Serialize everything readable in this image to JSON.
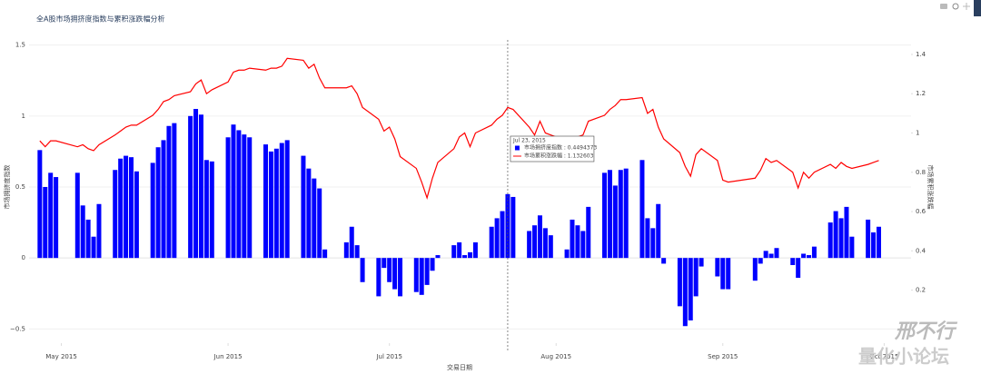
{
  "chart_data": {
    "type": "bar",
    "title": "全A股市场拥挤度指数与累积涨跌幅分析",
    "xlabel": "交易日期",
    "ylabel": "市场拥挤度指数",
    "y2label": "市场累积涨跌幅",
    "x": [
      "2015-04-27",
      "2015-04-28",
      "2015-04-29",
      "2015-04-30",
      "2015-05-04",
      "2015-05-05",
      "2015-05-06",
      "2015-05-07",
      "2015-05-08",
      "2015-05-11",
      "2015-05-12",
      "2015-05-13",
      "2015-05-14",
      "2015-05-15",
      "2015-05-18",
      "2015-05-19",
      "2015-05-20",
      "2015-05-21",
      "2015-05-22",
      "2015-05-25",
      "2015-05-26",
      "2015-05-27",
      "2015-05-28",
      "2015-05-29",
      "2015-06-01",
      "2015-06-02",
      "2015-06-03",
      "2015-06-04",
      "2015-06-05",
      "2015-06-08",
      "2015-06-09",
      "2015-06-10",
      "2015-06-11",
      "2015-06-12",
      "2015-06-15",
      "2015-06-16",
      "2015-06-17",
      "2015-06-18",
      "2015-06-19",
      "2015-06-23",
      "2015-06-24",
      "2015-06-25",
      "2015-06-26",
      "2015-06-29",
      "2015-06-30",
      "2015-07-01",
      "2015-07-02",
      "2015-07-03",
      "2015-07-06",
      "2015-07-07",
      "2015-07-08",
      "2015-07-09",
      "2015-07-10",
      "2015-07-13",
      "2015-07-14",
      "2015-07-15",
      "2015-07-16",
      "2015-07-17",
      "2015-07-20",
      "2015-07-21",
      "2015-07-22",
      "2015-07-23",
      "2015-07-24",
      "2015-07-27",
      "2015-07-28",
      "2015-07-29",
      "2015-07-30",
      "2015-07-31",
      "2015-08-03",
      "2015-08-04",
      "2015-08-05",
      "2015-08-06",
      "2015-08-07",
      "2015-08-10",
      "2015-08-11",
      "2015-08-12",
      "2015-08-13",
      "2015-08-14",
      "2015-08-17",
      "2015-08-18",
      "2015-08-19",
      "2015-08-20",
      "2015-08-21",
      "2015-08-24",
      "2015-08-25",
      "2015-08-26",
      "2015-08-27",
      "2015-08-28",
      "2015-08-31",
      "2015-09-01",
      "2015-09-02",
      "2015-09-07",
      "2015-09-08",
      "2015-09-09",
      "2015-09-10",
      "2015-09-11",
      "2015-09-14",
      "2015-09-15",
      "2015-09-16",
      "2015-09-17",
      "2015-09-18",
      "2015-09-21",
      "2015-09-22",
      "2015-09-23",
      "2015-09-24",
      "2015-09-25",
      "2015-09-28",
      "2015-09-29",
      "2015-09-30"
    ],
    "series": [
      {
        "name": "市场拥挤度指数",
        "type": "bar",
        "color": "#0000ff",
        "values": [
          0.76,
          0.5,
          0.6,
          0.57,
          0.6,
          0.37,
          0.27,
          0.15,
          0.38,
          0.62,
          0.7,
          0.72,
          0.71,
          0.61,
          0.67,
          0.78,
          0.83,
          0.93,
          0.95,
          1.0,
          1.05,
          1.01,
          0.69,
          0.68,
          0.85,
          0.94,
          0.9,
          0.87,
          0.85,
          0.8,
          0.75,
          0.77,
          0.81,
          0.83,
          0.72,
          0.63,
          0.56,
          0.49,
          0.06,
          0.11,
          0.22,
          0.09,
          -0.17,
          -0.27,
          -0.07,
          -0.17,
          -0.22,
          -0.27,
          -0.24,
          -0.26,
          -0.19,
          -0.09,
          0.02,
          0.09,
          0.11,
          0.02,
          0.04,
          0.11,
          0.22,
          0.28,
          0.33,
          0.45,
          0.43,
          0.19,
          0.23,
          0.3,
          0.21,
          0.16,
          0.06,
          0.27,
          0.23,
          0.19,
          0.36,
          0.6,
          0.62,
          0.51,
          0.62,
          0.63,
          0.69,
          0.28,
          0.21,
          0.38,
          -0.04,
          -0.34,
          -0.48,
          -0.44,
          -0.27,
          -0.06,
          -0.13,
          -0.22,
          -0.22,
          -0.16,
          -0.04,
          0.05,
          0.03,
          0.07,
          -0.05,
          -0.14,
          0.03,
          0.02,
          0.08,
          0.25,
          0.33,
          0.28,
          0.36,
          0.15,
          0.27,
          0.18,
          0.22
        ]
      },
      {
        "name": "市场累积涨跌幅",
        "type": "line",
        "axis": "y2",
        "color": "#ff0000",
        "values": [
          0.96,
          0.93,
          0.96,
          0.96,
          0.93,
          0.94,
          0.92,
          0.91,
          0.94,
          0.99,
          1.01,
          1.03,
          1.04,
          1.04,
          1.09,
          1.12,
          1.16,
          1.17,
          1.19,
          1.21,
          1.25,
          1.27,
          1.2,
          1.22,
          1.26,
          1.31,
          1.32,
          1.32,
          1.33,
          1.32,
          1.33,
          1.33,
          1.34,
          1.38,
          1.37,
          1.33,
          1.35,
          1.28,
          1.23,
          1.23,
          1.24,
          1.2,
          1.13,
          1.07,
          1.01,
          1.03,
          0.97,
          0.88,
          0.82,
          0.75,
          0.67,
          0.77,
          0.85,
          0.92,
          0.98,
          1.0,
          0.93,
          1.0,
          1.04,
          1.07,
          1.09,
          1.13,
          1.12,
          1.03,
          0.99,
          1.06,
          1.0,
          0.99,
          0.96,
          0.98,
          0.98,
          0.99,
          1.06,
          1.09,
          1.12,
          1.14,
          1.17,
          1.17,
          1.18,
          1.1,
          1.12,
          1.03,
          0.97,
          0.9,
          0.83,
          0.78,
          0.89,
          0.92,
          0.86,
          0.76,
          0.75,
          0.77,
          0.81,
          0.87,
          0.85,
          0.86,
          0.8,
          0.72,
          0.8,
          0.77,
          0.8,
          0.84,
          0.82,
          0.85,
          0.83,
          0.82,
          0.84,
          0.85,
          0.86
        ]
      }
    ],
    "xlim": [
      "2015-04-25",
      "2015-10-06"
    ],
    "xticks": [
      {
        "value": "2015-05-01",
        "label": "May 2015"
      },
      {
        "value": "2015-06-01",
        "label": "Jun 2015"
      },
      {
        "value": "2015-07-01",
        "label": "Jul 2015"
      },
      {
        "value": "2015-08-01",
        "label": "Aug 2015"
      },
      {
        "value": "2015-09-01",
        "label": "Sep 2015"
      },
      {
        "value": "2015-10-01",
        "label": "Oct 2015"
      }
    ],
    "ylim": [
      -0.6,
      1.6
    ],
    "yticks": [
      {
        "value": -0.5,
        "label": "−0.5"
      },
      0,
      0.5,
      1,
      1.5
    ],
    "y2lim": [
      -0.07,
      1.52
    ],
    "y2ticks": [
      0.2,
      0.4,
      0.6,
      0.8,
      1,
      1.2,
      1.4
    ],
    "grid": true,
    "hover": {
      "title": "Jul 23, 2015",
      "items": [
        "市场拥挤度指数 : 0.4494373",
        "市场累积涨跌幅 : 1.132603"
      ]
    },
    "watermark": [
      "邢不行",
      "量化小论坛"
    ]
  }
}
